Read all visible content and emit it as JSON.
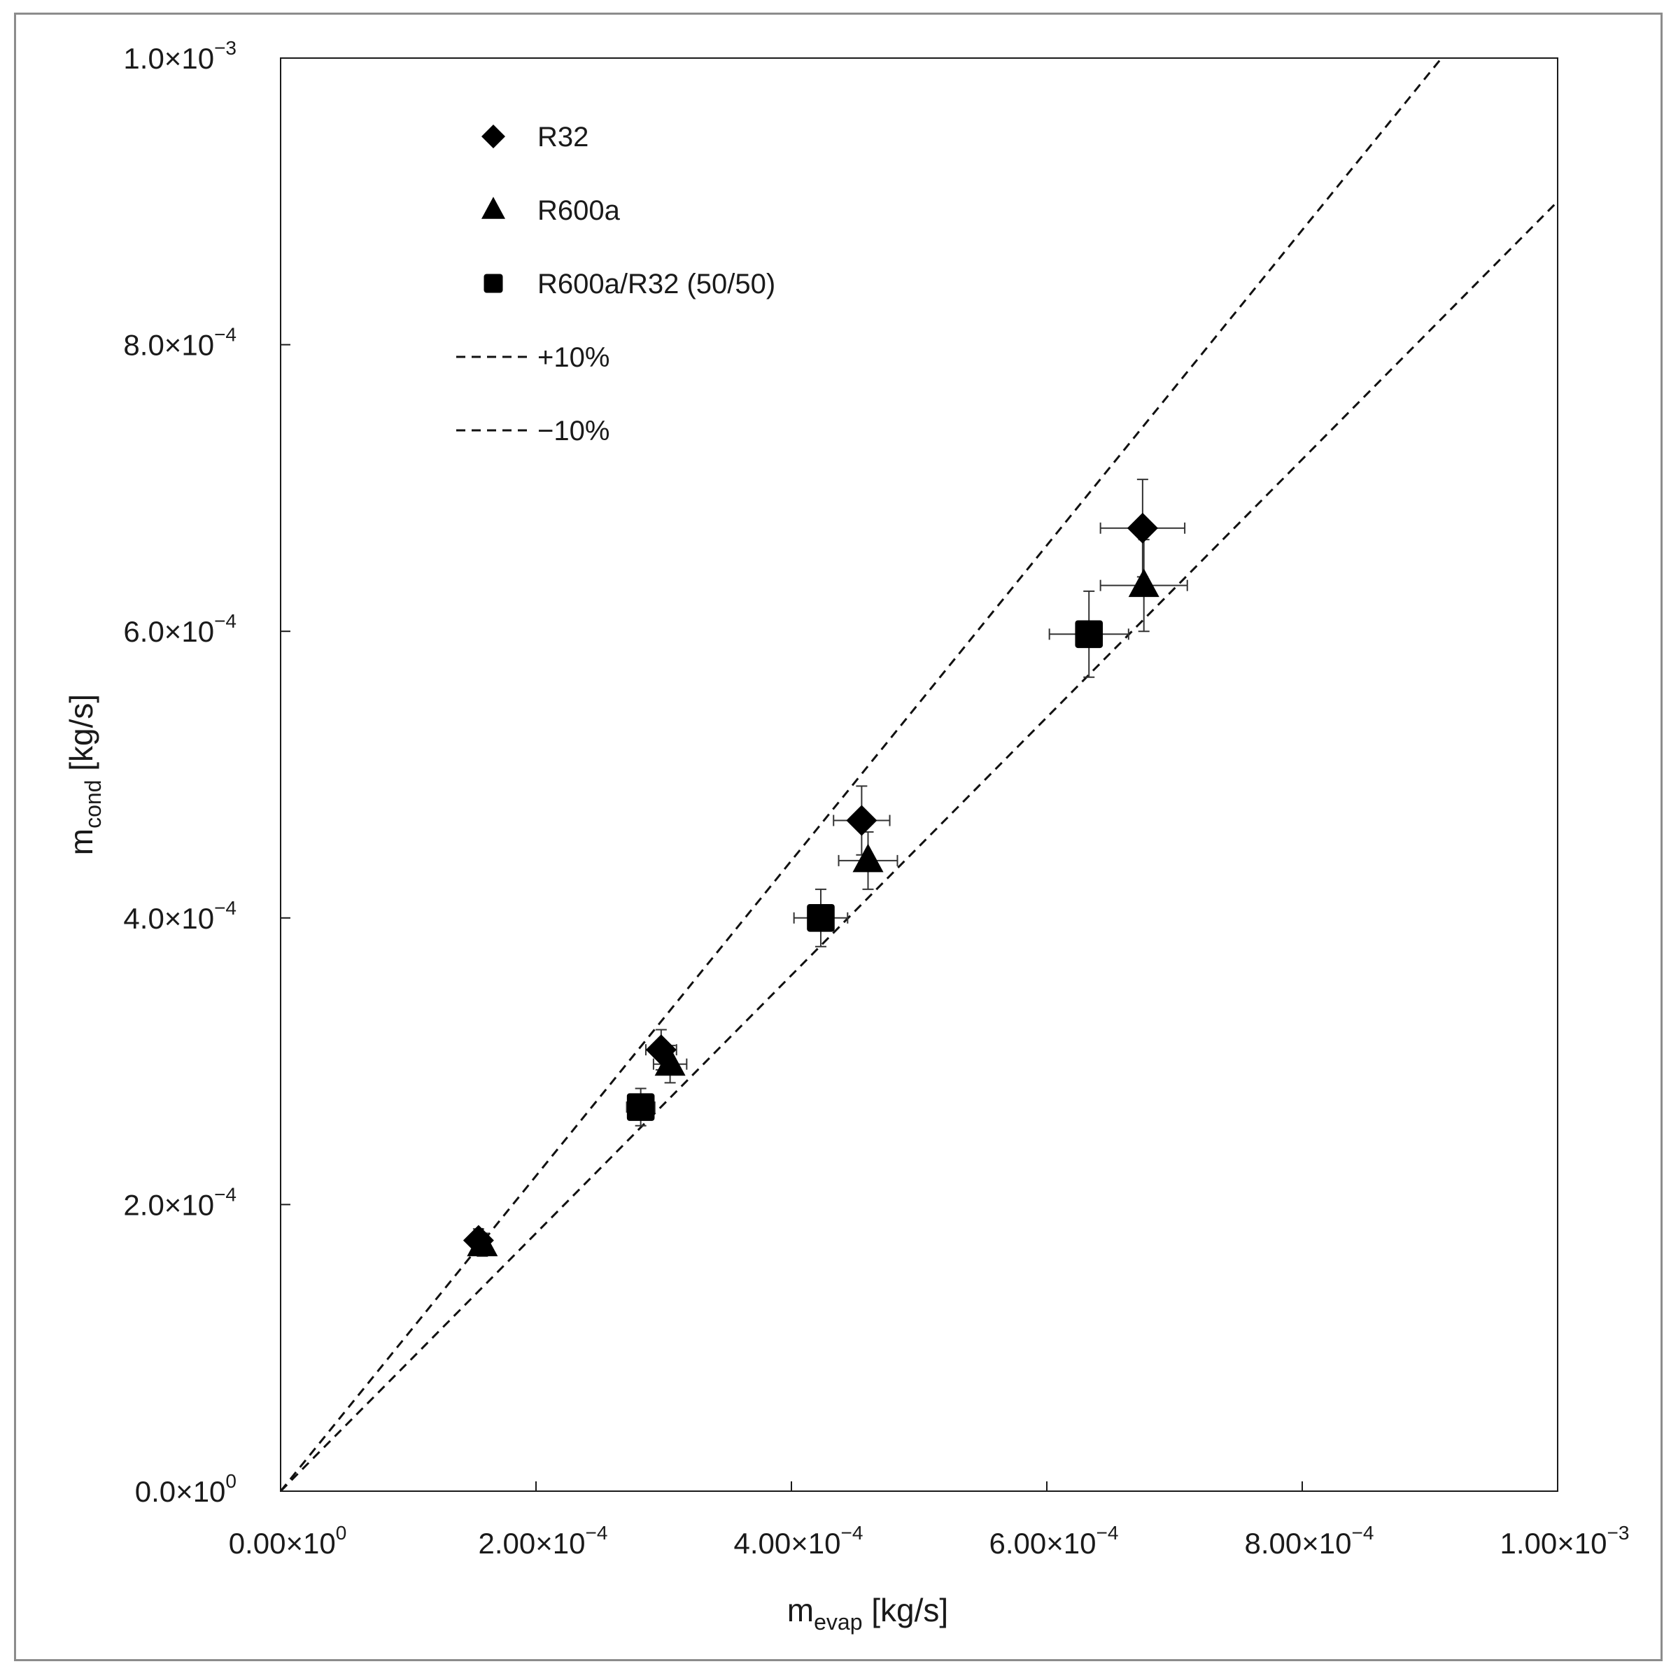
{
  "chart_data": {
    "type": "scatter",
    "title": "",
    "xlabel": {
      "base": "m",
      "sub": "evap",
      "unit": " [kg/s]"
    },
    "ylabel": {
      "base": "m",
      "sub": "cond",
      "unit": " [kg/s]"
    },
    "xlim": [
      0,
      0.001
    ],
    "ylim": [
      0,
      0.001
    ],
    "grid": false,
    "legend_position": "top-left",
    "x_ticks": [
      {
        "value": 0,
        "mant": "0.00",
        "exp": "0"
      },
      {
        "value": 0.0002,
        "mant": "2.00",
        "exp": "−4"
      },
      {
        "value": 0.0004,
        "mant": "4.00",
        "exp": "−4"
      },
      {
        "value": 0.0006,
        "mant": "6.00",
        "exp": "−4"
      },
      {
        "value": 0.0008,
        "mant": "8.00",
        "exp": "−4"
      },
      {
        "value": 0.001,
        "mant": "1.00",
        "exp": "−3"
      }
    ],
    "y_ticks": [
      {
        "value": 0,
        "mant": "0.0",
        "exp": "0"
      },
      {
        "value": 0.0002,
        "mant": "2.0",
        "exp": "−4"
      },
      {
        "value": 0.0004,
        "mant": "4.0",
        "exp": "−4"
      },
      {
        "value": 0.0006,
        "mant": "6.0",
        "exp": "−4"
      },
      {
        "value": 0.0008,
        "mant": "8.0",
        "exp": "−4"
      },
      {
        "value": 0.001,
        "mant": "1.0",
        "exp": "−3"
      }
    ],
    "series": [
      {
        "name": "R32",
        "marker": "diamond",
        "color": "#000000",
        "points": [
          {
            "x": 0.000155,
            "y": 0.000175,
            "xerr": 6e-06,
            "yerr": 8e-06
          },
          {
            "x": 0.000298,
            "y": 0.000308,
            "xerr": 1.2e-05,
            "yerr": 1.4e-05
          },
          {
            "x": 0.000455,
            "y": 0.000468,
            "xerr": 2.2e-05,
            "yerr": 2.4e-05
          },
          {
            "x": 0.000675,
            "y": 0.000672,
            "xerr": 3.3e-05,
            "yerr": 3.4e-05
          }
        ]
      },
      {
        "name": "R600a",
        "marker": "triangle",
        "color": "#000000",
        "points": [
          {
            "x": 0.000158,
            "y": 0.000172,
            "xerr": 6e-06,
            "yerr": 8e-06
          },
          {
            "x": 0.000305,
            "y": 0.000298,
            "xerr": 1.3e-05,
            "yerr": 1.3e-05
          },
          {
            "x": 0.00046,
            "y": 0.00044,
            "xerr": 2.3e-05,
            "yerr": 2e-05
          },
          {
            "x": 0.000676,
            "y": 0.000632,
            "xerr": 3.4e-05,
            "yerr": 3.2e-05
          }
        ]
      },
      {
        "name": "R600a/R32 (50/50)",
        "marker": "square",
        "color": "#000000",
        "points": [
          {
            "x": 0.000282,
            "y": 0.000268,
            "xerr": 1.1e-05,
            "yerr": 1.3e-05
          },
          {
            "x": 0.000423,
            "y": 0.0004,
            "xerr": 2.1e-05,
            "yerr": 2e-05
          },
          {
            "x": 0.000633,
            "y": 0.000598,
            "xerr": 3.1e-05,
            "yerr": 3e-05
          }
        ]
      }
    ],
    "reference_lines": [
      {
        "name": "+10%",
        "slope": 1.1,
        "style": "dashed"
      },
      {
        "name": "−10%",
        "slope": 0.9,
        "style": "dashed"
      }
    ]
  }
}
